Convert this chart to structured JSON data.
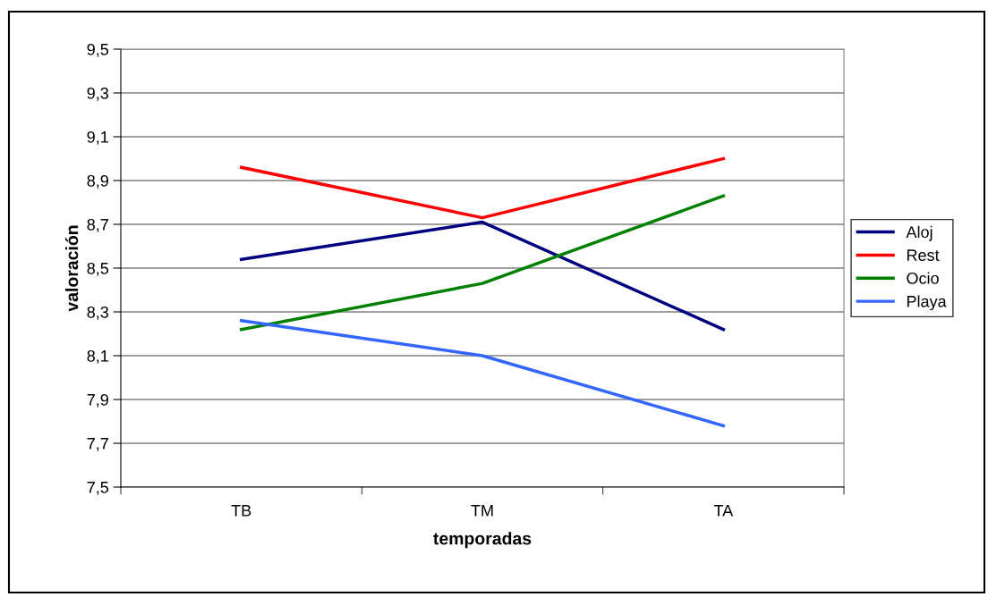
{
  "chart_data": {
    "type": "line",
    "xlabel": "temporadas",
    "ylabel": "valoración",
    "categories": [
      "TB",
      "TM",
      "TA"
    ],
    "series": [
      {
        "name": "Aloj",
        "color": "#000080",
        "values": [
          8.54,
          8.71,
          8.22
        ]
      },
      {
        "name": "Rest",
        "color": "#ff0000",
        "values": [
          8.96,
          8.73,
          9.0
        ]
      },
      {
        "name": "Ocio",
        "color": "#008000",
        "values": [
          8.22,
          8.43,
          8.83
        ]
      },
      {
        "name": "Playa",
        "color": "#3366ff",
        "values": [
          8.26,
          8.1,
          7.78
        ]
      }
    ],
    "ylim": [
      7.5,
      9.5
    ],
    "yticks": [
      {
        "value": 7.5,
        "label": "7,5"
      },
      {
        "value": 7.7,
        "label": "7,7"
      },
      {
        "value": 7.9,
        "label": "7,9"
      },
      {
        "value": 8.1,
        "label": "8,1"
      },
      {
        "value": 8.3,
        "label": "8,3"
      },
      {
        "value": 8.5,
        "label": "8,5"
      },
      {
        "value": 8.7,
        "label": "8,7"
      },
      {
        "value": 8.9,
        "label": "8,9"
      },
      {
        "value": 9.1,
        "label": "9,1"
      },
      {
        "value": 9.3,
        "label": "9,3"
      },
      {
        "value": 9.5,
        "label": "9,5"
      }
    ],
    "grid": "y",
    "legend": "right",
    "marker": "none",
    "line_style": "solid"
  }
}
